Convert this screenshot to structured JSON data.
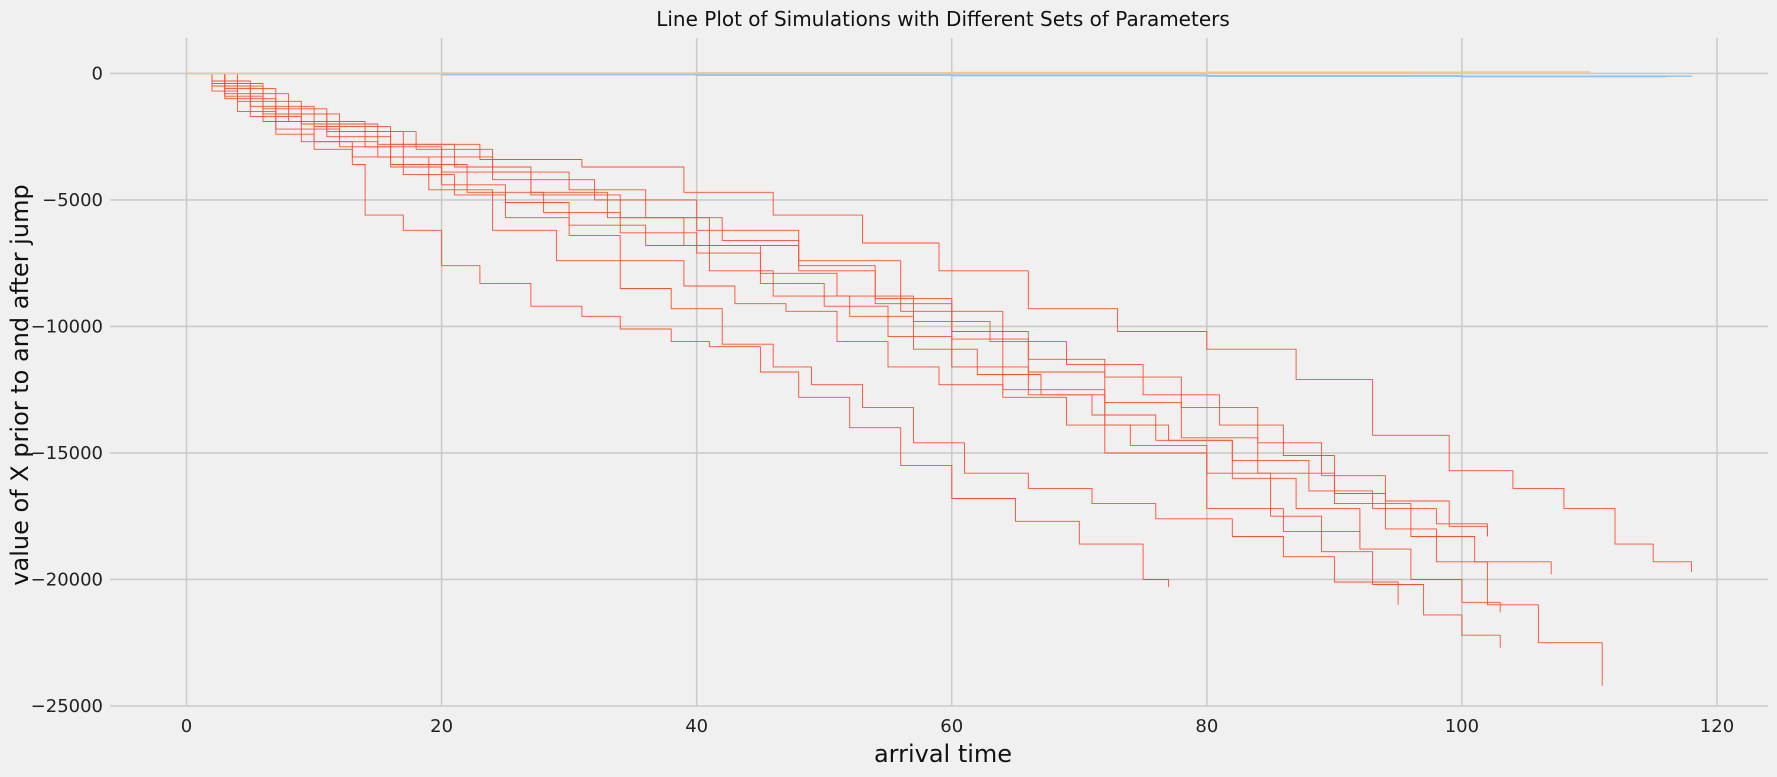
{
  "chart_data": {
    "type": "line",
    "title": "Line Plot of Simulations with Different Sets of Parameters",
    "xlabel": "arrival time",
    "ylabel": "value of X prior to and after jump",
    "xlim": [
      -6,
      124
    ],
    "ylim": [
      -25000,
      1400
    ],
    "xticks": [
      0,
      20,
      40,
      60,
      80,
      100,
      120
    ],
    "yticks": [
      0,
      -5000,
      -10000,
      -15000,
      -20000,
      -25000
    ],
    "xtick_labels": [
      "0",
      "20",
      "40",
      "60",
      "80",
      "100",
      "120"
    ],
    "ytick_labels": [
      "0",
      "−5000",
      "−10000",
      "−15000",
      "−20000",
      "−25000"
    ],
    "grid": true,
    "colors": {
      "red": "#fc4f30",
      "blue": "#8fc5f0",
      "orange": "#f5c78a",
      "background": "#f0f0f0",
      "grid": "#cbcbcb"
    },
    "series": [
      {
        "color_key": "red",
        "x": [
          0,
          2,
          4,
          7,
          10,
          13,
          14,
          17,
          20,
          23,
          27,
          31,
          34,
          38,
          41,
          45,
          48,
          52,
          56,
          60,
          65,
          70,
          75,
          77
        ],
        "y": [
          0,
          -700,
          -1500,
          -2400,
          -3000,
          -3600,
          -5600,
          -6200,
          -7600,
          -8300,
          -9200,
          -9600,
          -10100,
          -10600,
          -10800,
          -11800,
          -12800,
          -14000,
          -15500,
          -16800,
          -17700,
          -18600,
          -20000,
          -20300
        ]
      },
      {
        "color_key": "red",
        "x": [
          0,
          3,
          6,
          10,
          15,
          19,
          24,
          29,
          34,
          38,
          42,
          46,
          49,
          53,
          57,
          61,
          66,
          71,
          76,
          82,
          86,
          90,
          95
        ],
        "y": [
          0,
          -900,
          -1900,
          -2700,
          -3300,
          -4600,
          -6200,
          -7400,
          -8500,
          -9300,
          -10700,
          -11600,
          -12300,
          -13200,
          -14600,
          -15800,
          -16400,
          -17000,
          -17600,
          -18300,
          -19100,
          -20100,
          -21000
        ]
      },
      {
        "color_key": "red",
        "x": [
          0,
          2,
          5,
          9,
          13,
          17,
          21,
          25,
          30,
          34,
          39,
          43,
          47,
          51,
          55,
          59,
          64,
          69,
          74,
          80,
          85,
          89,
          93,
          97,
          100,
          103
        ],
        "y": [
          0,
          -500,
          -1700,
          -2700,
          -3300,
          -4000,
          -4800,
          -5700,
          -6400,
          -7400,
          -8400,
          -9100,
          -9400,
          -10600,
          -11600,
          -12300,
          -12800,
          -13900,
          -14700,
          -15800,
          -17500,
          -18900,
          -20200,
          -21400,
          -22200,
          -22700
        ]
      },
      {
        "color_key": "red",
        "x": [
          0,
          3,
          7,
          12,
          16,
          20,
          25,
          30,
          36,
          41,
          46,
          52,
          57,
          62,
          67,
          72,
          77,
          82,
          88,
          93,
          98,
          102
        ],
        "y": [
          0,
          -1000,
          -2200,
          -2900,
          -3700,
          -4400,
          -5100,
          -6000,
          -6800,
          -7800,
          -8800,
          -9600,
          -10900,
          -11900,
          -12700,
          -13900,
          -14500,
          -15300,
          -16500,
          -17200,
          -17800,
          -18300
        ]
      },
      {
        "color_key": "red",
        "x": [
          0,
          2,
          6,
          11,
          16,
          22,
          28,
          34,
          40,
          45,
          50,
          55,
          60,
          66,
          71,
          76,
          82,
          87,
          92,
          96,
          100,
          103
        ],
        "y": [
          0,
          -400,
          -1600,
          -2500,
          -3600,
          -4700,
          -5500,
          -6300,
          -7100,
          -8300,
          -9200,
          -10400,
          -11600,
          -12700,
          -13500,
          -14500,
          -16000,
          -17200,
          -18800,
          -20000,
          -20900,
          -21300
        ]
      },
      {
        "color_key": "red",
        "x": [
          0,
          4,
          9,
          15,
          21,
          27,
          33,
          39,
          45,
          51,
          57,
          63,
          69,
          75,
          81,
          86,
          90,
          94,
          98,
          102,
          106,
          111
        ],
        "y": [
          0,
          -1100,
          -2000,
          -2800,
          -3700,
          -4700,
          -5700,
          -6800,
          -7900,
          -8800,
          -9800,
          -10600,
          -11500,
          -12700,
          -13900,
          -15100,
          -16600,
          -18000,
          -19300,
          -21000,
          -22500,
          -24200
        ]
      },
      {
        "color_key": "red",
        "x": [
          0,
          3,
          8,
          14,
          20,
          27,
          34,
          41,
          48,
          54,
          60,
          66,
          72,
          78,
          84,
          90,
          96,
          101,
          107
        ],
        "y": [
          0,
          -800,
          -1900,
          -2900,
          -3900,
          -4800,
          -5700,
          -6800,
          -7800,
          -9100,
          -10500,
          -11800,
          -13000,
          -14400,
          -15800,
          -17000,
          -18300,
          -19300,
          -19800
        ]
      },
      {
        "color_key": "red",
        "x": [
          0,
          2,
          5,
          10,
          16,
          23,
          31,
          39,
          46,
          53,
          59,
          66,
          73,
          80,
          87,
          93,
          99,
          104,
          108,
          112,
          115,
          118
        ],
        "y": [
          0,
          -300,
          -1300,
          -2100,
          -2800,
          -3400,
          -3700,
          -4700,
          -5600,
          -6700,
          -7800,
          -9300,
          -10200,
          -10900,
          -12100,
          -14300,
          -15700,
          -16400,
          -17200,
          -18600,
          -19300,
          -19700
        ]
      },
      {
        "color_key": "red",
        "x": [
          0,
          3,
          7,
          12,
          18,
          24,
          30,
          36,
          42,
          48,
          54,
          60,
          66,
          72,
          78,
          84,
          89,
          94,
          99,
          102
        ],
        "y": [
          0,
          -600,
          -1600,
          -2300,
          -3000,
          -3900,
          -4600,
          -5700,
          -6600,
          -7600,
          -8900,
          -10200,
          -11300,
          -12000,
          -13200,
          -14600,
          -15900,
          -16900,
          -17900,
          -18300
        ]
      },
      {
        "color_key": "red",
        "x": [
          0,
          2,
          6,
          11,
          17,
          24,
          32,
          40,
          48,
          56,
          64,
          72,
          80,
          86,
          92
        ],
        "y": [
          0,
          -500,
          -1400,
          -2300,
          -3300,
          -4200,
          -5000,
          -6200,
          -7400,
          -9400,
          -12500,
          -15000,
          -17200,
          -18100,
          -18500
        ]
      },
      {
        "color_key": "blue",
        "x": [
          0,
          20,
          40,
          60,
          80,
          100,
          116
        ],
        "y": [
          0,
          -50,
          -70,
          -90,
          -110,
          -130,
          -150
        ]
      },
      {
        "color_key": "blue",
        "x": [
          0,
          20,
          40,
          60,
          80,
          100,
          118
        ],
        "y": [
          0,
          -30,
          -60,
          -80,
          -100,
          -110,
          -120
        ]
      },
      {
        "color_key": "blue",
        "x": [
          0,
          20,
          40,
          60,
          80,
          100
        ],
        "y": [
          0,
          -40,
          -55,
          -70,
          -90,
          -100
        ]
      },
      {
        "color_key": "orange",
        "x": [
          0,
          20,
          40,
          60,
          80,
          100,
          110
        ],
        "y": [
          0,
          20,
          30,
          40,
          50,
          60,
          70
        ]
      },
      {
        "color_key": "orange",
        "x": [
          0,
          20,
          40,
          60,
          80,
          96
        ],
        "y": [
          0,
          10,
          15,
          25,
          30,
          35
        ]
      }
    ]
  }
}
